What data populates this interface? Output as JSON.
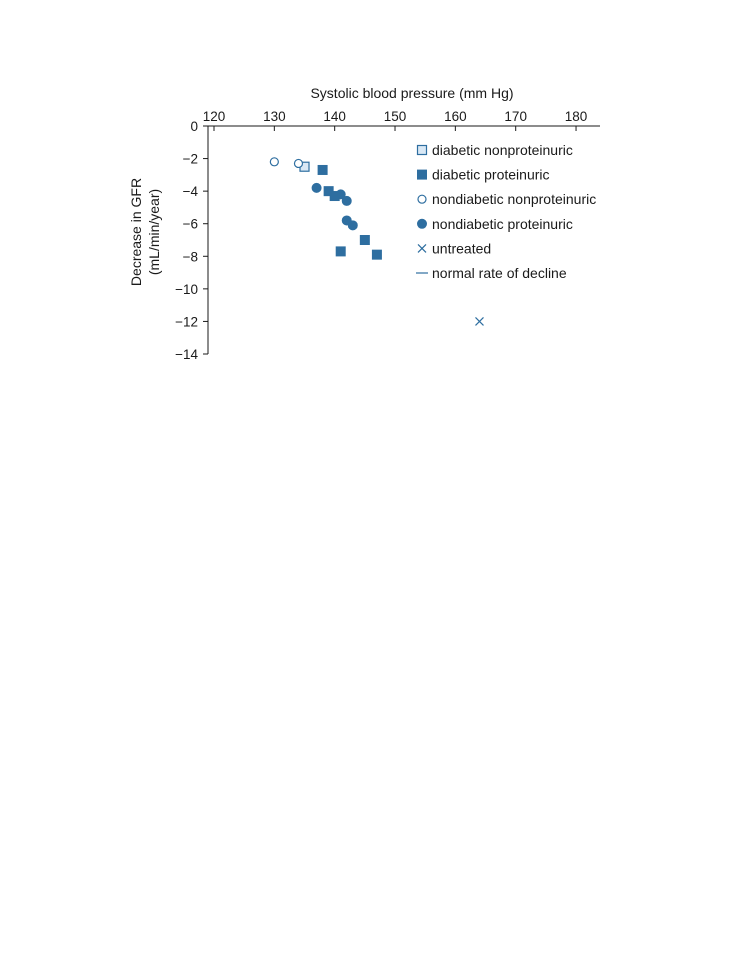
{
  "chart_data": {
    "type": "scatter",
    "xlabel": "Systolic blood pressure (mm Hg)",
    "ylabel_line1": "Decrease in GFR",
    "ylabel_line2": "(mL/min/year)",
    "xlim": [
      120,
      185
    ],
    "ylim": [
      -14,
      0
    ],
    "x_ticks": [
      120,
      130,
      140,
      150,
      160,
      170,
      180
    ],
    "y_ticks": [
      0,
      -2,
      -4,
      -6,
      -8,
      -10,
      -12,
      -14
    ],
    "y_tick_labels": [
      "0",
      "−2",
      "−4",
      "−6",
      "−8",
      "−10",
      "−12",
      "−14"
    ],
    "x_axis_position": "top",
    "grid": false,
    "legend_position": "top-right",
    "colors": {
      "fill_dark": "#2e6ea0",
      "fill_light": "#d9e8f5",
      "stroke": "#2e6ea0",
      "axis": "#1a1a1a"
    },
    "series": [
      {
        "name": "diabetic nonproteinuric",
        "marker": "square-open",
        "points": [
          [
            136,
            -2.5
          ]
        ]
      },
      {
        "name": "diabetic proteinuric",
        "marker": "square-filled",
        "points": [
          [
            139,
            -2.7
          ],
          [
            140,
            -4.0
          ],
          [
            141,
            -4.3
          ],
          [
            142,
            -7.7
          ],
          [
            146,
            -7.0
          ],
          [
            148,
            -7.9
          ]
        ]
      },
      {
        "name": "nondiabetic nonproteinuric",
        "marker": "circle-open",
        "points": [
          [
            131,
            -2.2
          ],
          [
            135,
            -2.3
          ]
        ]
      },
      {
        "name": "nondiabetic proteinuric",
        "marker": "circle-filled",
        "points": [
          [
            138,
            -3.8
          ],
          [
            142,
            -4.2
          ],
          [
            143,
            -4.6
          ],
          [
            143,
            -5.8
          ],
          [
            144,
            -6.1
          ]
        ]
      },
      {
        "name": "untreated",
        "marker": "x",
        "points": [
          [
            165,
            -12
          ]
        ]
      },
      {
        "name": "normal rate of decline",
        "marker": "line",
        "points": []
      }
    ]
  }
}
